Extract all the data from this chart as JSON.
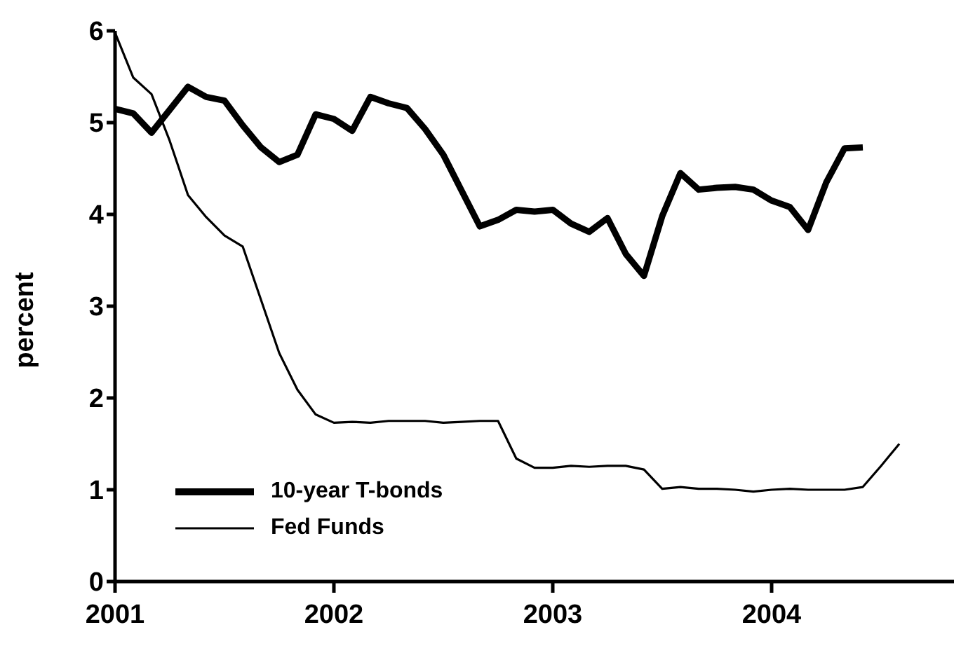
{
  "chart_data": {
    "type": "line",
    "ylabel": "percent",
    "xlim": [
      "2001-01",
      "2004-11"
    ],
    "xticks": [
      "2001",
      "2002",
      "2003",
      "2004"
    ],
    "ylim": [
      0,
      6
    ],
    "yticks": [
      0,
      1,
      2,
      3,
      4,
      5,
      6
    ],
    "grid": false,
    "legend": "bottom left",
    "marker": "none",
    "line_style": "solid",
    "series": [
      {
        "name": "10-year T-bonds",
        "color": "#000000",
        "x": [
          "2001-01",
          "2001-02",
          "2001-03",
          "2001-04",
          "2001-05",
          "2001-06",
          "2001-07",
          "2001-08",
          "2001-09",
          "2001-10",
          "2001-11",
          "2001-12",
          "2002-01",
          "2002-02",
          "2002-03",
          "2002-04",
          "2002-05",
          "2002-06",
          "2002-07",
          "2002-08",
          "2002-09",
          "2002-10",
          "2002-11",
          "2002-12",
          "2003-01",
          "2003-02",
          "2003-03",
          "2003-04",
          "2003-05",
          "2003-06",
          "2003-07",
          "2003-08",
          "2003-09",
          "2003-10",
          "2003-11",
          "2003-12",
          "2004-01",
          "2004-02",
          "2004-03",
          "2004-04",
          "2004-05",
          "2004-06"
        ],
        "values": [
          5.15,
          5.1,
          4.89,
          5.14,
          5.39,
          5.28,
          5.24,
          4.97,
          4.73,
          4.57,
          4.65,
          5.09,
          5.04,
          4.91,
          5.28,
          5.21,
          5.16,
          4.93,
          4.65,
          4.26,
          3.87,
          3.94,
          4.05,
          4.03,
          4.05,
          3.9,
          3.81,
          3.96,
          3.57,
          3.33,
          3.98,
          4.45,
          4.27,
          4.29,
          4.3,
          4.27,
          4.15,
          4.08,
          3.83,
          4.35,
          4.72,
          4.73
        ]
      },
      {
        "name": "Fed Funds",
        "color": "#000000",
        "x": [
          "2001-01",
          "2001-02",
          "2001-03",
          "2001-04",
          "2001-05",
          "2001-06",
          "2001-07",
          "2001-08",
          "2001-09",
          "2001-10",
          "2001-11",
          "2001-12",
          "2002-01",
          "2002-02",
          "2002-03",
          "2002-04",
          "2002-05",
          "2002-06",
          "2002-07",
          "2002-08",
          "2002-09",
          "2002-10",
          "2002-11",
          "2002-12",
          "2003-01",
          "2003-02",
          "2003-03",
          "2003-04",
          "2003-05",
          "2003-06",
          "2003-07",
          "2003-08",
          "2003-09",
          "2003-10",
          "2003-11",
          "2003-12",
          "2004-01",
          "2004-02",
          "2004-03",
          "2004-04",
          "2004-05",
          "2004-06",
          "2004-07",
          "2004-08"
        ],
        "values": [
          5.98,
          5.49,
          5.31,
          4.8,
          4.21,
          3.97,
          3.77,
          3.65,
          3.07,
          2.49,
          2.09,
          1.82,
          1.73,
          1.74,
          1.73,
          1.75,
          1.75,
          1.75,
          1.73,
          1.74,
          1.75,
          1.75,
          1.34,
          1.24,
          1.24,
          1.26,
          1.25,
          1.26,
          1.26,
          1.22,
          1.01,
          1.03,
          1.01,
          1.01,
          1.0,
          0.98,
          1.0,
          1.01,
          1.0,
          1.0,
          1.0,
          1.03,
          1.26,
          1.5
        ]
      }
    ]
  }
}
